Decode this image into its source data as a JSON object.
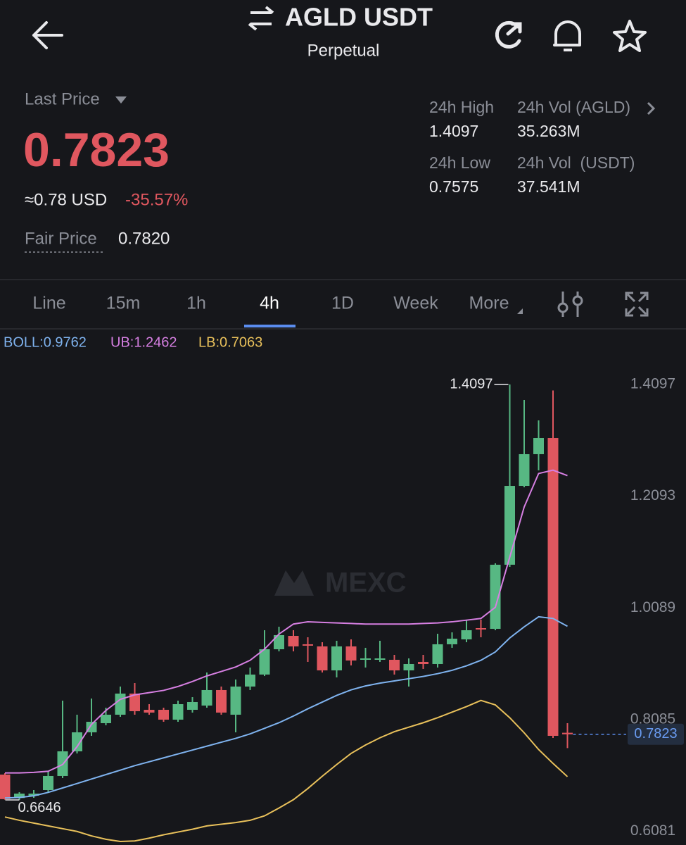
{
  "header": {
    "title": "AGLD USDT",
    "subtitle": "Perpetual"
  },
  "price": {
    "label": "Last Price",
    "value": "0.7823",
    "usd": "≈0.78 USD",
    "change": "-35.57%",
    "fair_label": "Fair Price",
    "fair_value": "0.7820"
  },
  "stats": [
    {
      "label": "24h High",
      "value": "1.4097"
    },
    {
      "label": "24h Vol (AGLD)",
      "value": "35.263M"
    },
    {
      "label": "24h Low",
      "value": "0.7575"
    },
    {
      "label": "24h Vol  (USDT)",
      "value": "37.541M"
    }
  ],
  "tabs": [
    "Line",
    "15m",
    "1h",
    "4h",
    "1D",
    "Week",
    "More"
  ],
  "active_tab": 3,
  "chart_data": {
    "type": "candlestick",
    "watermark": "MEXC",
    "up_color": "#57b883",
    "down_color": "#e0575f",
    "candles": {
      "open": [
        0.71,
        0.668,
        0.6721,
        0.6822,
        0.7075,
        0.7517,
        0.7858,
        0.8022,
        0.8174,
        0.8553,
        0.8262,
        0.8262,
        0.8085,
        0.8262,
        0.8338,
        0.8616,
        0.8174,
        0.8679,
        0.8894,
        0.9348,
        0.9588,
        0.9437,
        0.9399,
        0.8969,
        0.9399,
        0.9159,
        0.9159,
        0.9159,
        0.8969,
        0.9121,
        0.9083,
        0.9437,
        0.9525,
        0.9727,
        0.9714,
        1.0864,
        1.2278,
        1.2847,
        1.3137,
        0.785
      ],
      "high": [
        0.7125,
        0.6784,
        0.6822,
        0.7163,
        0.8426,
        0.8174,
        0.8464,
        0.83,
        0.8679,
        0.8742,
        0.8363,
        0.83,
        0.8426,
        0.8489,
        0.8931,
        0.8679,
        0.8805,
        0.902,
        0.9689,
        0.9752,
        0.9689,
        0.9563,
        0.9474,
        0.95,
        0.9525,
        0.9374,
        0.95,
        0.9247,
        0.9184,
        0.9247,
        0.9626,
        0.9651,
        0.9879,
        0.9879,
        1.0889,
        1.4097,
        1.3819,
        1.3453,
        1.399,
        0.8022
      ],
      "low": [
        0.665,
        0.6646,
        0.6683,
        0.6784,
        0.7037,
        0.7479,
        0.7795,
        0.7984,
        0.8136,
        0.8174,
        0.8174,
        0.8047,
        0.8047,
        0.8212,
        0.83,
        0.8174,
        0.7858,
        0.8616,
        0.8868,
        0.931,
        0.931,
        0.9121,
        0.8931,
        0.8843,
        0.9058,
        0.902,
        0.9121,
        0.8894,
        0.8679,
        0.8995,
        0.902,
        0.9374,
        0.9474,
        0.9563,
        0.9689,
        1.0826,
        1.2253,
        1.2556,
        0.7757,
        0.7575
      ],
      "close": [
        0.666,
        0.6759,
        0.6759,
        0.7075,
        0.7517,
        0.7858,
        0.8047,
        0.8174,
        0.8553,
        0.8237,
        0.8212,
        0.8085,
        0.8363,
        0.8401,
        0.8616,
        0.8212,
        0.8679,
        0.8894,
        0.9348,
        0.9601,
        0.9399,
        0.9412,
        0.8969,
        0.9399,
        0.9146,
        0.9184,
        0.9184,
        0.8969,
        0.9083,
        0.9083,
        0.9437,
        0.9538,
        0.9689,
        0.9702,
        1.0864,
        1.2278,
        1.2847,
        1.3137,
        0.7795,
        0.7823
      ]
    },
    "series": [
      {
        "name": "BOLL:0.9762",
        "color": "#7fb3ef",
        "values": [
          0.668,
          0.669,
          0.672,
          0.678,
          0.686,
          0.694,
          0.702,
          0.71,
          0.718,
          0.726,
          0.733,
          0.74,
          0.747,
          0.754,
          0.761,
          0.768,
          0.775,
          0.783,
          0.793,
          0.803,
          0.815,
          0.828,
          0.84,
          0.852,
          0.862,
          0.869,
          0.874,
          0.878,
          0.882,
          0.886,
          0.891,
          0.897,
          0.905,
          0.915,
          0.93,
          0.955,
          0.975,
          0.993,
          0.99,
          0.976
        ]
      },
      {
        "name": "UB:1.2462",
        "color": "#d67fe2",
        "values": [
          0.713,
          0.713,
          0.714,
          0.716,
          0.728,
          0.76,
          0.8,
          0.825,
          0.845,
          0.853,
          0.857,
          0.861,
          0.868,
          0.877,
          0.887,
          0.895,
          0.903,
          0.915,
          0.935,
          0.962,
          0.98,
          0.984,
          0.983,
          0.982,
          0.981,
          0.98,
          0.98,
          0.98,
          0.98,
          0.981,
          0.982,
          0.984,
          0.987,
          0.99,
          1.01,
          1.1,
          1.19,
          1.25,
          1.256,
          1.2462
        ]
      },
      {
        "name": "LB:0.7063",
        "color": "#e9c15b",
        "values": [
          0.634,
          0.628,
          0.623,
          0.618,
          0.613,
          0.608,
          0.6,
          0.594,
          0.59,
          0.591,
          0.596,
          0.602,
          0.607,
          0.612,
          0.618,
          0.621,
          0.624,
          0.628,
          0.636,
          0.65,
          0.665,
          0.685,
          0.707,
          0.728,
          0.748,
          0.763,
          0.776,
          0.787,
          0.795,
          0.803,
          0.812,
          0.822,
          0.832,
          0.843,
          0.835,
          0.812,
          0.785,
          0.755,
          0.73,
          0.7063
        ]
      }
    ],
    "ylim": [
      0.5837,
      1.4678
    ],
    "yticks": [
      1.4097,
      1.2093,
      1.0089,
      0.8085,
      0.6081
    ],
    "high_marker": 1.4097,
    "low_marker": 0.6646,
    "last_price": 0.7823
  }
}
